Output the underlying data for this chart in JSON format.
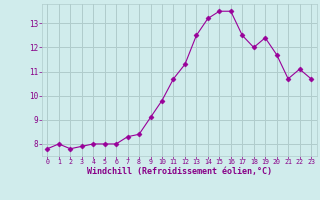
{
  "x": [
    0,
    1,
    2,
    3,
    4,
    5,
    6,
    7,
    8,
    9,
    10,
    11,
    12,
    13,
    14,
    15,
    16,
    17,
    18,
    19,
    20,
    21,
    22,
    23
  ],
  "y": [
    7.8,
    8.0,
    7.8,
    7.9,
    8.0,
    8.0,
    8.0,
    8.3,
    8.4,
    9.1,
    9.8,
    10.7,
    11.3,
    12.5,
    13.2,
    13.5,
    13.5,
    12.5,
    12.0,
    12.4,
    11.7,
    10.7,
    11.1,
    10.7
  ],
  "line_color": "#990099",
  "marker": "D",
  "marker_size": 2.5,
  "bg_color": "#d0ecec",
  "grid_color": "#b0cccc",
  "xlabel": "Windchill (Refroidissement éolien,°C)",
  "ylabel_ticks": [
    8,
    9,
    10,
    11,
    12,
    13
  ],
  "xlim": [
    -0.5,
    23.5
  ],
  "ylim": [
    7.5,
    13.8
  ],
  "xlabel_color": "#880088",
  "tick_color": "#880088"
}
